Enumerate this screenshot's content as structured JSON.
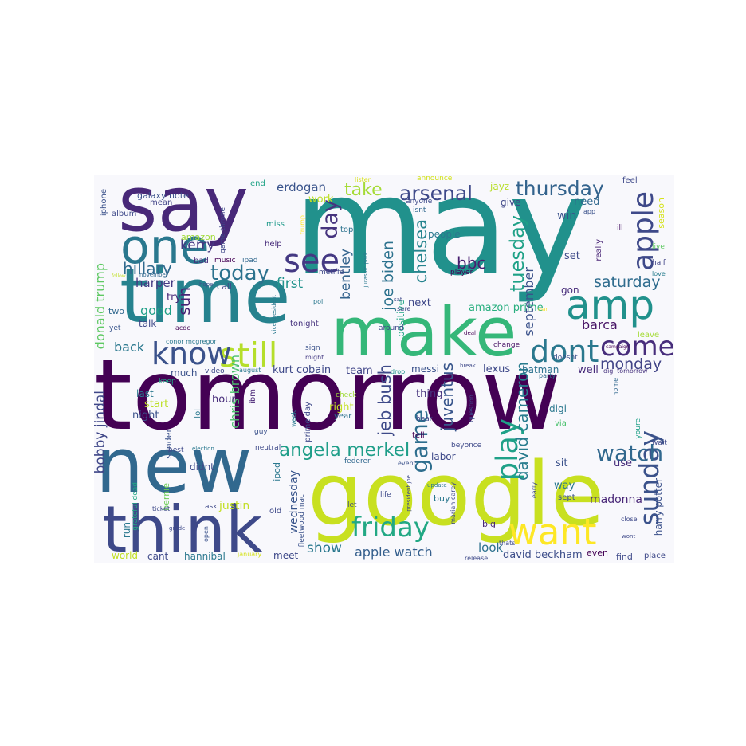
{
  "cloud": {
    "background": "#f8f8fc",
    "colormap": "viridis",
    "words": [
      {
        "text": "tomorrow",
        "color": "#440154"
      },
      {
        "text": "may",
        "color": "#21918c"
      },
      {
        "text": "google",
        "color": "#c8e020"
      },
      {
        "text": "say",
        "color": "#482878"
      },
      {
        "text": "new",
        "color": "#31688e"
      },
      {
        "text": "time",
        "color": "#26828e"
      },
      {
        "text": "make",
        "color": "#35b779"
      },
      {
        "text": "think",
        "color": "#3e4989"
      },
      {
        "text": "want",
        "color": "#fde725"
      },
      {
        "text": "one",
        "color": "#2a788e"
      },
      {
        "text": "amp",
        "color": "#21918c"
      },
      {
        "text": "still",
        "color": "#b5de2b"
      },
      {
        "text": "know",
        "color": "#3b528b"
      },
      {
        "text": "friday",
        "color": "#22a884"
      },
      {
        "text": "see",
        "color": "#443983"
      },
      {
        "text": "dont",
        "color": "#2a788e"
      },
      {
        "text": "come",
        "color": "#472d7b"
      },
      {
        "text": "apple",
        "color": "#3e4989"
      },
      {
        "text": "sunday",
        "color": "#3b528b"
      },
      {
        "text": "play",
        "color": "#1fa188"
      },
      {
        "text": "watch",
        "color": "#31688e"
      },
      {
        "text": "angela merkel",
        "color": "#1f9e89"
      },
      {
        "text": "today",
        "color": "#2c728e"
      },
      {
        "text": "day",
        "color": "#46337e"
      },
      {
        "text": "thursday",
        "color": "#33638d"
      },
      {
        "text": "arsenal",
        "color": "#3e4989"
      },
      {
        "text": "take",
        "color": "#a5db36"
      },
      {
        "text": "game",
        "color": "#2e6e8e"
      },
      {
        "text": "tuesday",
        "color": "#1fa187"
      },
      {
        "text": "jeb bush",
        "color": "#3e4a89"
      },
      {
        "text": "chelsea",
        "color": "#25848e"
      },
      {
        "text": "juventus",
        "color": "#39568c"
      },
      {
        "text": "joe biden",
        "color": "#2c728e"
      },
      {
        "text": "david cameron",
        "color": "#287c8e"
      },
      {
        "text": "saturday",
        "color": "#2f6c8e"
      },
      {
        "text": "monday",
        "color": "#414487"
      },
      {
        "text": "bbc",
        "color": "#481f70"
      },
      {
        "text": "bentley",
        "color": "#33638d"
      },
      {
        "text": "hillary",
        "color": "#306a8e"
      },
      {
        "text": "sun",
        "color": "#482475"
      },
      {
        "text": "kerry",
        "color": "#453781"
      },
      {
        "text": "september",
        "color": "#3b528b"
      },
      {
        "text": "donald trump",
        "color": "#5ec962"
      },
      {
        "text": "bobby jindal",
        "color": "#3f4788"
      },
      {
        "text": "chris brown",
        "color": "#4ac16d"
      },
      {
        "text": "show",
        "color": "#2a788e"
      },
      {
        "text": "apple watch",
        "color": "#355f8d"
      },
      {
        "text": "first",
        "color": "#20938c"
      },
      {
        "text": "harper",
        "color": "#443a83"
      },
      {
        "text": "good",
        "color": "#1fa088"
      },
      {
        "text": "barca",
        "color": "#471365"
      },
      {
        "text": "back",
        "color": "#2a788e"
      },
      {
        "text": "wednesday",
        "color": "#39558c"
      },
      {
        "text": "look",
        "color": "#2d718e"
      },
      {
        "text": "david beckham",
        "color": "#3d4e8a"
      },
      {
        "text": "harry potter",
        "color": "#3b518b"
      },
      {
        "text": "madonna",
        "color": "#482677"
      },
      {
        "text": "kurt cobain",
        "color": "#3e4989"
      },
      {
        "text": "team",
        "color": "#404588"
      },
      {
        "text": "erdogan",
        "color": "#3a548c"
      },
      {
        "text": "work",
        "color": "#bddf26"
      },
      {
        "text": "need",
        "color": "#31688e"
      },
      {
        "text": "win",
        "color": "#3b528b"
      },
      {
        "text": "set",
        "color": "#3e4a89"
      },
      {
        "text": "gon",
        "color": "#472c7a"
      },
      {
        "text": "next",
        "color": "#3f4889"
      },
      {
        "text": "positive",
        "color": "#22a785"
      },
      {
        "text": "amazon prime",
        "color": "#29af7f"
      },
      {
        "text": "messi",
        "color": "#3b528b"
      },
      {
        "text": "lexus",
        "color": "#3e4989"
      },
      {
        "text": "batman",
        "color": "#2c728e"
      },
      {
        "text": "well",
        "color": "#472a7a"
      },
      {
        "text": "digi tomorrow",
        "color": "#46327e"
      },
      {
        "text": "people",
        "color": "#2a788e"
      },
      {
        "text": "give",
        "color": "#3f4788"
      },
      {
        "text": "jayz",
        "color": "#b8de29"
      },
      {
        "text": "galaxy note",
        "color": "#3b518b"
      },
      {
        "text": "mean",
        "color": "#414487"
      },
      {
        "text": "album",
        "color": "#3e4989"
      },
      {
        "text": "iphone",
        "color": "#3b528b"
      },
      {
        "text": "end",
        "color": "#20a386"
      },
      {
        "text": "game throne",
        "color": "#3f4788"
      },
      {
        "text": "miss",
        "color": "#1f9a8a"
      },
      {
        "text": "trump",
        "color": "#fde725"
      },
      {
        "text": "amazon",
        "color": "#a0da39"
      },
      {
        "text": "bad",
        "color": "#472d7b"
      },
      {
        "text": "music",
        "color": "#440154"
      },
      {
        "text": "ipad",
        "color": "#31688e"
      },
      {
        "text": "help",
        "color": "#472c7a"
      },
      {
        "text": "metlife",
        "color": "#3e4989"
      },
      {
        "text": "top",
        "color": "#2c728e"
      },
      {
        "text": "jurassic park",
        "color": "#2a788e"
      },
      {
        "text": "player",
        "color": "#440154"
      },
      {
        "text": "announce",
        "color": "#d2e21b"
      },
      {
        "text": "listen",
        "color": "#d8e219"
      },
      {
        "text": "anyone",
        "color": "#3e4a89"
      },
      {
        "text": "isnt",
        "color": "#31688e"
      },
      {
        "text": "app",
        "color": "#3b528b"
      },
      {
        "text": "feel",
        "color": "#3e4989"
      },
      {
        "text": "ill",
        "color": "#471365"
      },
      {
        "text": "season",
        "color": "#d5e21a"
      },
      {
        "text": "live",
        "color": "#5ec962"
      },
      {
        "text": "half",
        "color": "#414487"
      },
      {
        "text": "love",
        "color": "#287d8e"
      },
      {
        "text": "really",
        "color": "#482475"
      },
      {
        "text": "november",
        "color": "#31688e"
      },
      {
        "text": "follow",
        "color": "#c0df25"
      },
      {
        "text": "hope",
        "color": "#3b528b"
      },
      {
        "text": "vice president",
        "color": "#2a788e"
      },
      {
        "text": "poll",
        "color": "#2a788e"
      },
      {
        "text": "sat",
        "color": "#3e4989"
      },
      {
        "text": "sure",
        "color": "#3f4788"
      },
      {
        "text": "man",
        "color": "#fde725"
      },
      {
        "text": "call",
        "color": "#3e4989"
      },
      {
        "text": "two",
        "color": "#31688e"
      },
      {
        "text": "talk",
        "color": "#3e4989"
      },
      {
        "text": "try",
        "color": "#482878"
      },
      {
        "text": "yet",
        "color": "#39558c"
      },
      {
        "text": "acdc",
        "color": "#440154"
      },
      {
        "text": "tonight",
        "color": "#46337e"
      },
      {
        "text": "sign",
        "color": "#3b528b"
      },
      {
        "text": "might",
        "color": "#443983"
      },
      {
        "text": "around",
        "color": "#3e4989"
      },
      {
        "text": "deal",
        "color": "#440154"
      },
      {
        "text": "change",
        "color": "#471365"
      },
      {
        "text": "doesnt",
        "color": "#3b528b"
      },
      {
        "text": "campaign",
        "color": "#440154"
      },
      {
        "text": "leave",
        "color": "#a5db36"
      },
      {
        "text": "conor mcgregor",
        "color": "#2a788e"
      },
      {
        "text": "much",
        "color": "#3b528b"
      },
      {
        "text": "keep",
        "color": "#22a884"
      },
      {
        "text": "video",
        "color": "#3e4989"
      },
      {
        "text": "august",
        "color": "#2a788e"
      },
      {
        "text": "drop",
        "color": "#20938c"
      },
      {
        "text": "break",
        "color": "#3e4989"
      },
      {
        "text": "party",
        "color": "#306a8e"
      },
      {
        "text": "home",
        "color": "#31688e"
      },
      {
        "text": "last",
        "color": "#2a788e"
      },
      {
        "text": "hour",
        "color": "#472c7a"
      },
      {
        "text": "ibm",
        "color": "#482475"
      },
      {
        "text": "start",
        "color": "#bddf26"
      },
      {
        "text": "lol",
        "color": "#2a788e"
      },
      {
        "text": "night",
        "color": "#3b528b"
      },
      {
        "text": "right",
        "color": "#c2df23"
      },
      {
        "text": "year",
        "color": "#2c728e"
      },
      {
        "text": "thing",
        "color": "#46337e"
      },
      {
        "text": "check",
        "color": "#a0da39"
      },
      {
        "text": "hear",
        "color": "#3e4989"
      },
      {
        "text": "question",
        "color": "#3e4989"
      },
      {
        "text": "digi",
        "color": "#2a788e"
      },
      {
        "text": "via",
        "color": "#4ac16d"
      },
      {
        "text": "youre",
        "color": "#1fa088"
      },
      {
        "text": "wait",
        "color": "#3e4989"
      },
      {
        "text": "guy",
        "color": "#3b528b"
      },
      {
        "text": "week",
        "color": "#2a788e"
      },
      {
        "text": "prime day",
        "color": "#3e4989"
      },
      {
        "text": "tell",
        "color": "#440154"
      },
      {
        "text": "best",
        "color": "#3e4989"
      },
      {
        "text": "election",
        "color": "#2a788e"
      },
      {
        "text": "neutral",
        "color": "#3e4989"
      },
      {
        "text": "labor",
        "color": "#3e4989"
      },
      {
        "text": "beyonce",
        "color": "#3e4989"
      },
      {
        "text": "sit",
        "color": "#3b528b"
      },
      {
        "text": "use",
        "color": "#472d7b"
      },
      {
        "text": "bernie",
        "color": "#6ece58"
      },
      {
        "text": "sander",
        "color": "#3b528b"
      },
      {
        "text": "didnt",
        "color": "#3e4989"
      },
      {
        "text": "federer",
        "color": "#31688e"
      },
      {
        "text": "event",
        "color": "#3b528b"
      },
      {
        "text": "update",
        "color": "#2a788e"
      },
      {
        "text": "mariah carey",
        "color": "#3e4989"
      },
      {
        "text": "way",
        "color": "#2a788e"
      },
      {
        "text": "early",
        "color": "#3e4989"
      },
      {
        "text": "sept",
        "color": "#3b528b"
      },
      {
        "text": "grateful dead",
        "color": "#22a884"
      },
      {
        "text": "run",
        "color": "#2a788e"
      },
      {
        "text": "ask",
        "color": "#3e4989"
      },
      {
        "text": "justin",
        "color": "#c2df23"
      },
      {
        "text": "ticket",
        "color": "#3e4989"
      },
      {
        "text": "fleetwood mac",
        "color": "#3b528b"
      },
      {
        "text": "old",
        "color": "#3e4989"
      },
      {
        "text": "let",
        "color": "#3e4989"
      },
      {
        "text": "life",
        "color": "#3e4989"
      },
      {
        "text": "president joe",
        "color": "#3e4989"
      },
      {
        "text": "buy",
        "color": "#2a788e"
      },
      {
        "text": "big",
        "color": "#482878"
      },
      {
        "text": "close",
        "color": "#3e4989"
      },
      {
        "text": "open",
        "color": "#3b528b"
      },
      {
        "text": "grade",
        "color": "#3e4989"
      },
      {
        "text": "ipod",
        "color": "#2a788e"
      },
      {
        "text": "wont",
        "color": "#3e4989"
      },
      {
        "text": "world",
        "color": "#c2df23"
      },
      {
        "text": "cant",
        "color": "#3e4989"
      },
      {
        "text": "hannibal",
        "color": "#2a788e"
      },
      {
        "text": "january",
        "color": "#d5e21a"
      },
      {
        "text": "meet",
        "color": "#3e4989"
      },
      {
        "text": "thats",
        "color": "#3e4989"
      },
      {
        "text": "release",
        "color": "#3e4989"
      },
      {
        "text": "even",
        "color": "#440154"
      },
      {
        "text": "find",
        "color": "#3e4989"
      },
      {
        "text": "place",
        "color": "#3e4989"
      }
    ]
  }
}
